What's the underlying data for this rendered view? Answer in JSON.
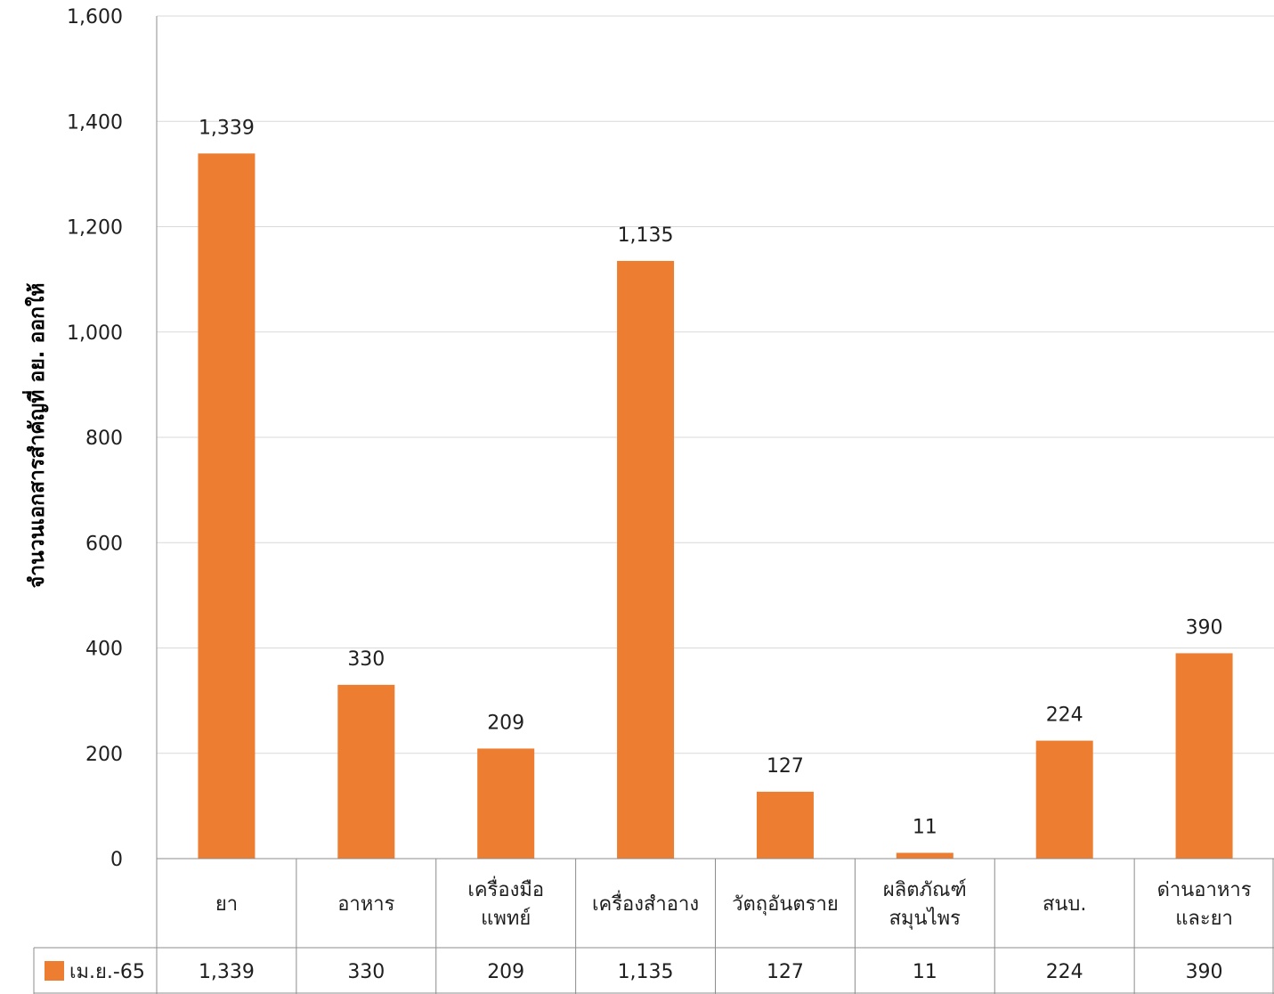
{
  "chart_data": {
    "type": "bar",
    "title": "",
    "xlabel": "",
    "ylabel": "จำนวนเอกสารสำคัญที่ อย. ออกให้",
    "ylim": [
      0,
      1600
    ],
    "yticks": [
      0,
      200,
      400,
      600,
      800,
      1000,
      1200,
      1400,
      1600
    ],
    "ytick_labels": [
      "0",
      "200",
      "400",
      "600",
      "800",
      "1,000",
      "1,200",
      "1,400",
      "1,600"
    ],
    "grid": true,
    "legend_position": "data-table",
    "categories": [
      [
        "ยา"
      ],
      [
        "อาหาร"
      ],
      [
        "เครื่องมือ",
        "แพทย์"
      ],
      [
        "เครื่องสำอาง"
      ],
      [
        "วัตถุอันตราย"
      ],
      [
        "ผลิตภัณฑ์",
        "สมุนไพร"
      ],
      [
        "สนบ."
      ],
      [
        "ด่านอาหาร",
        "และยา"
      ]
    ],
    "series": [
      {
        "name": "เม.ย.-65",
        "color": "#ED7D31",
        "values": [
          1339,
          330,
          209,
          1135,
          127,
          11,
          224,
          390
        ],
        "value_labels": [
          "1,339",
          "330",
          "209",
          "1,135",
          "127",
          "11",
          "224",
          "390"
        ]
      }
    ]
  }
}
